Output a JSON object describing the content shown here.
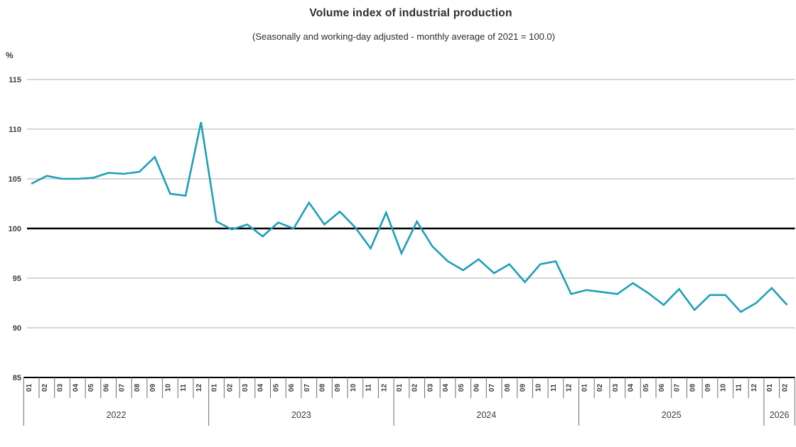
{
  "chart": {
    "title": "Volume index of industrial production",
    "subtitle": "(Seasonally and working-day adjusted - monthly average of 2021 = 100.0)",
    "unit": "%"
  },
  "chart_data": {
    "type": "line",
    "title": "Volume index of industrial production",
    "subtitle": "(Seasonally and working-day adjusted - monthly average of 2021 = 100.0)",
    "ylabel": "%",
    "xlabel": "",
    "ylim": [
      85,
      115
    ],
    "yticks": [
      115,
      110,
      105,
      100,
      95,
      90,
      85
    ],
    "baseline": 100,
    "grid": true,
    "legend": "none",
    "colors": {
      "line": "#1d9fba",
      "grid": "#c8c8c8",
      "baseline": "#000000",
      "axis": "#000000",
      "tick": "#6e6e6e",
      "text": "#3d3d3d"
    },
    "x_groups": [
      {
        "label": "2022",
        "months": [
          "01",
          "02",
          "03",
          "04",
          "05",
          "06",
          "07",
          "08",
          "09",
          "10",
          "11",
          "12"
        ]
      },
      {
        "label": "2023",
        "months": [
          "01",
          "02",
          "03",
          "04",
          "05",
          "06",
          "07",
          "08",
          "09",
          "10",
          "11",
          "12"
        ]
      },
      {
        "label": "2024",
        "months": [
          "01",
          "02",
          "03",
          "04",
          "05",
          "06",
          "07",
          "08",
          "09",
          "10",
          "11",
          "12"
        ]
      },
      {
        "label": "2025",
        "months": [
          "01",
          "02",
          "03",
          "04",
          "05",
          "06",
          "07",
          "08",
          "09",
          "10",
          "11",
          "12"
        ]
      },
      {
        "label": "2026",
        "months": [
          "01",
          "02"
        ]
      }
    ],
    "series": [
      {
        "name": "Volume index of industrial production",
        "values": [
          104.5,
          105.3,
          105.0,
          105.0,
          105.1,
          105.6,
          105.5,
          105.7,
          107.2,
          103.5,
          103.3,
          110.7,
          100.7,
          99.9,
          100.4,
          99.2,
          100.6,
          100.0,
          102.6,
          100.4,
          101.7,
          100.1,
          98.0,
          101.6,
          97.5,
          100.7,
          98.2,
          96.7,
          95.8,
          96.9,
          95.5,
          96.4,
          94.6,
          96.4,
          96.7,
          93.4,
          93.8,
          93.6,
          93.4,
          94.5,
          93.5,
          92.3,
          93.9,
          91.8,
          93.3,
          93.3,
          91.6,
          92.5,
          94.0,
          92.3
        ]
      }
    ]
  }
}
